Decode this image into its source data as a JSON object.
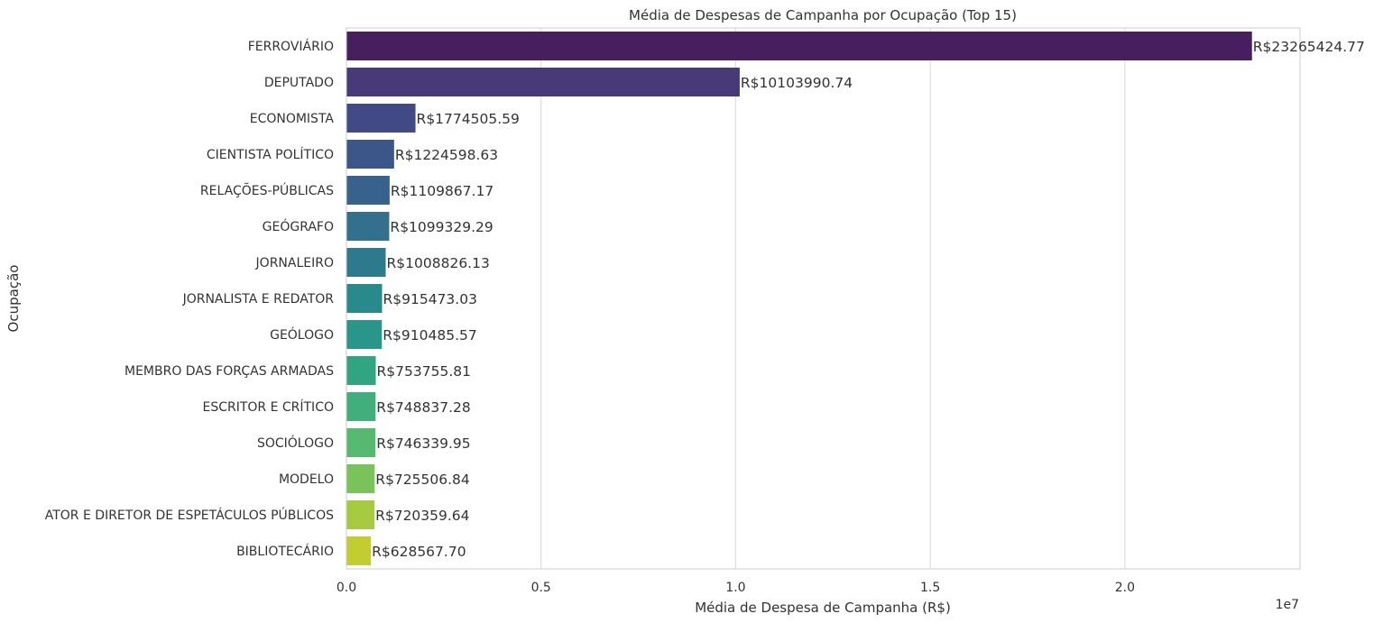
{
  "chart_data": {
    "type": "bar",
    "orientation": "horizontal",
    "title": "Média de Despesas de Campanha por Ocupação (Top 15)",
    "xlabel": "Média de Despesa de Campanha (R$)",
    "ylabel": "Ocupação",
    "x_offset_label": "1e7",
    "xlim": [
      0,
      24500000
    ],
    "xticks": [
      {
        "value": 0,
        "label": "0.0"
      },
      {
        "value": 5000000,
        "label": "0.5"
      },
      {
        "value": 10000000,
        "label": "1.0"
      },
      {
        "value": 15000000,
        "label": "1.5"
      },
      {
        "value": 20000000,
        "label": "2.0"
      }
    ],
    "grid": true,
    "palette": "viridis",
    "categories": [
      "FERROVIÁRIO",
      "DEPUTADO",
      "ECONOMISTA",
      "CIENTISTA POLÍTICO",
      "RELAÇÕES-PÚBLICAS",
      "GEÓGRAFO",
      "JORNALEIRO",
      "JORNALISTA E REDATOR",
      "GEÓLOGO",
      "MEMBRO DAS FORÇAS ARMADAS",
      "ESCRITOR E CRÍTICO",
      "SOCIÓLOGO",
      "MODELO",
      "ATOR E DIRETOR DE ESPETÁCULOS PÚBLICOS",
      "BIBLIOTECÁRIO"
    ],
    "values": [
      23265424.77,
      10103990.74,
      1774505.59,
      1224598.63,
      1109867.17,
      1099329.29,
      1008826.13,
      915473.03,
      910485.57,
      753755.81,
      748837.28,
      746339.95,
      725506.84,
      720359.64,
      628567.7
    ],
    "data_labels": [
      "R$23265424.77",
      "R$10103990.74",
      "R$1774505.59",
      "R$1224598.63",
      "R$1109867.17",
      "R$1099329.29",
      "R$1008826.13",
      "R$915473.03",
      "R$910485.57",
      "R$753755.81",
      "R$748837.28",
      "R$746339.95",
      "R$725506.84",
      "R$720359.64",
      "R$628567.70"
    ],
    "colors": [
      "#481f5e",
      "#483a78",
      "#424a85",
      "#3c568a",
      "#37628d",
      "#33708e",
      "#2d7a8f",
      "#298a8c",
      "#2a968a",
      "#32a482",
      "#42ae7c",
      "#57b870",
      "#7ac25a",
      "#a6cb40",
      "#c4cd30"
    ]
  }
}
